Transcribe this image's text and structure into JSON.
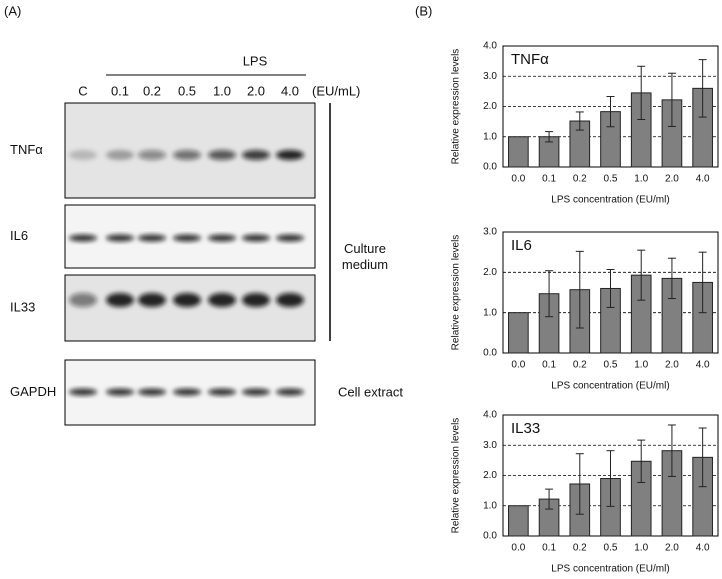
{
  "panel_a": {
    "label": "(A)",
    "treatment": "LPS",
    "unit": "(EU/mL)",
    "lanes": [
      "C",
      "0.1",
      "0.2",
      "0.5",
      "1.0",
      "2.0",
      "4.0"
    ],
    "blots": [
      "TNFα",
      "IL6",
      "IL33",
      "GAPDH"
    ],
    "groups": [
      "Culture\nmedium",
      "Cell extract"
    ]
  },
  "panel_b": {
    "label": "(B)"
  },
  "chart_data": [
    {
      "type": "bar",
      "title": "TNFα",
      "x_label": "LPS concentration (EU/ml)",
      "y_label": "Relative expression levels",
      "categories": [
        "0.0",
        "0.1",
        "0.2",
        "0.5",
        "1.0",
        "2.0",
        "4.0"
      ],
      "values": [
        1.0,
        1.0,
        1.52,
        1.83,
        2.45,
        2.22,
        2.6
      ],
      "errors": [
        0,
        0.17,
        0.3,
        0.5,
        0.88,
        0.88,
        0.95
      ],
      "color": "#808080",
      "ylim": [
        0,
        4
      ],
      "yticks": [
        {
          "value": 0,
          "label": "0.0"
        },
        {
          "value": 1,
          "label": "1.0"
        },
        {
          "value": 2,
          "label": "2.0"
        },
        {
          "value": 3,
          "label": "3.0"
        },
        {
          "value": 4,
          "label": "4.0"
        }
      ],
      "grid": true
    },
    {
      "type": "bar",
      "title": "IL6",
      "x_label": "LPS concentration (EU/ml)",
      "y_label": "Relative expression levels",
      "categories": [
        "0.0",
        "0.1",
        "0.2",
        "0.5",
        "1.0",
        "2.0",
        "4.0"
      ],
      "values": [
        1.0,
        1.47,
        1.57,
        1.6,
        1.93,
        1.85,
        1.75
      ],
      "errors": [
        0,
        0.57,
        0.95,
        0.47,
        0.62,
        0.5,
        0.75
      ],
      "color": "#808080",
      "ylim": [
        0,
        3
      ],
      "yticks": [
        {
          "value": 0,
          "label": "0.0"
        },
        {
          "value": 1,
          "label": "1.0"
        },
        {
          "value": 2,
          "label": "2.0"
        },
        {
          "value": 3,
          "label": "3.0"
        }
      ],
      "grid": true
    },
    {
      "type": "bar",
      "title": "IL33",
      "x_label": "LPS concentration (EU/ml)",
      "y_label": "Relative expression levels",
      "categories": [
        "0.0",
        "0.1",
        "0.2",
        "0.5",
        "1.0",
        "2.0",
        "4.0"
      ],
      "values": [
        1.0,
        1.22,
        1.72,
        1.9,
        2.47,
        2.82,
        2.6
      ],
      "errors": [
        0,
        0.33,
        1.0,
        0.92,
        0.7,
        0.85,
        0.97
      ],
      "color": "#808080",
      "ylim": [
        0,
        4
      ],
      "yticks": [
        {
          "value": 0,
          "label": "0.0"
        },
        {
          "value": 1,
          "label": "1.0"
        },
        {
          "value": 2,
          "label": "2.0"
        },
        {
          "value": 3,
          "label": "3.0"
        },
        {
          "value": 4,
          "label": "4.0"
        }
      ],
      "grid": true
    }
  ]
}
